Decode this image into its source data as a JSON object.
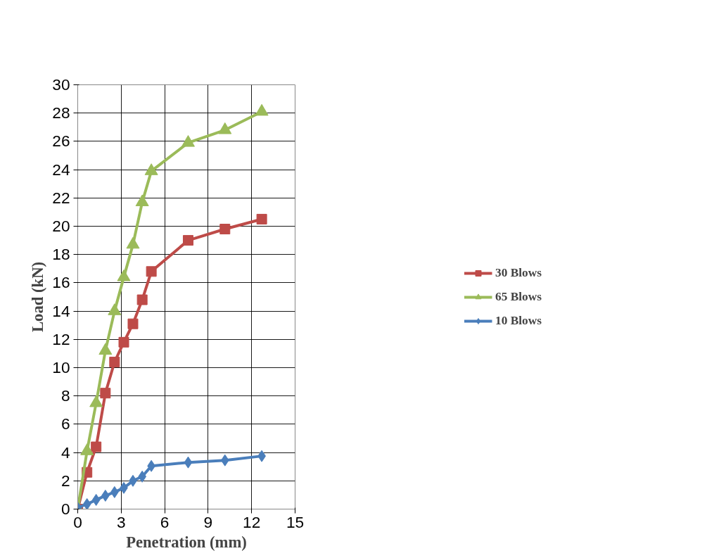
{
  "chart_data": {
    "type": "line",
    "xlabel": "Penetration (mm)",
    "ylabel": "Load (kN)",
    "x": [
      0,
      0.64,
      1.27,
      1.91,
      2.54,
      3.18,
      3.81,
      4.45,
      5.08,
      7.62,
      10.16,
      12.7
    ],
    "series": [
      {
        "name": "30 Blows",
        "color": "#be4b48",
        "marker": "square",
        "values": [
          0,
          2.6,
          4.4,
          8.2,
          10.4,
          11.8,
          13.1,
          14.8,
          16.8,
          19.0,
          19.8,
          20.5
        ]
      },
      {
        "name": "65 Blows",
        "color": "#9bbb59",
        "marker": "triangle",
        "values": [
          0,
          4.1,
          7.5,
          11.2,
          14.0,
          16.4,
          18.7,
          21.7,
          23.9,
          25.9,
          26.8,
          28.1
        ]
      },
      {
        "name": "10 Blows",
        "color": "#4a7ebb",
        "marker": "diamond",
        "values": [
          0.1,
          0.35,
          0.65,
          0.95,
          1.2,
          1.5,
          2.0,
          2.3,
          3.05,
          3.3,
          3.45,
          3.75
        ]
      }
    ],
    "xlim": [
      0,
      15
    ],
    "xticks": [
      0,
      3,
      6,
      9,
      12,
      15
    ],
    "ylim": [
      0,
      30
    ],
    "yticks": [
      0,
      2,
      4,
      6,
      8,
      10,
      12,
      14,
      16,
      18,
      20,
      22,
      24,
      26,
      28,
      30
    ],
    "grid": true,
    "legend": "right",
    "line_style": "solid"
  }
}
